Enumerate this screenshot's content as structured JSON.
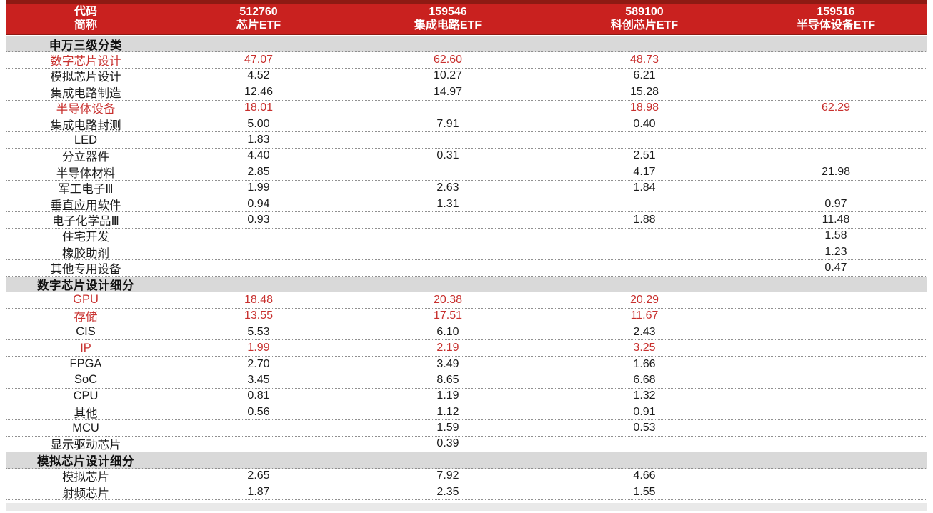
{
  "colors": {
    "header_bg": "#c9211f",
    "header_border": "#8d1a13",
    "section_bg": "#d9d9d9",
    "accent_red": "#c8302e",
    "text": "#1c1c1c"
  },
  "chart_data": {
    "type": "table",
    "header": {
      "columns": [
        {
          "code": "代码",
          "name": "简称"
        },
        {
          "code": "512760",
          "name": "芯片ETF"
        },
        {
          "code": "159546",
          "name": "集成电路ETF"
        },
        {
          "code": "589100",
          "name": "科创芯片ETF"
        },
        {
          "code": "159516",
          "name": "半导体设备ETF"
        }
      ]
    },
    "rows": [
      {
        "type": "section",
        "label": "申万三级分类"
      },
      {
        "type": "data",
        "red": true,
        "label": "数字芯片设计",
        "values": [
          "47.07",
          "62.60",
          "48.73",
          ""
        ]
      },
      {
        "type": "data",
        "red": false,
        "label": "模拟芯片设计",
        "values": [
          "4.52",
          "10.27",
          "6.21",
          ""
        ]
      },
      {
        "type": "data",
        "red": false,
        "label": "集成电路制造",
        "values": [
          "12.46",
          "14.97",
          "15.28",
          ""
        ]
      },
      {
        "type": "data",
        "red": true,
        "label": "半导体设备",
        "values": [
          "18.01",
          "",
          "18.98",
          "62.29"
        ]
      },
      {
        "type": "data",
        "red": false,
        "label": "集成电路封测",
        "values": [
          "5.00",
          "7.91",
          "0.40",
          ""
        ]
      },
      {
        "type": "data",
        "red": false,
        "label": "LED",
        "values": [
          "1.83",
          "",
          "",
          ""
        ]
      },
      {
        "type": "data",
        "red": false,
        "label": "分立器件",
        "values": [
          "4.40",
          "0.31",
          "2.51",
          ""
        ]
      },
      {
        "type": "data",
        "red": false,
        "label": "半导体材料",
        "values": [
          "2.85",
          "",
          "4.17",
          "21.98"
        ]
      },
      {
        "type": "data",
        "red": false,
        "label": "军工电子Ⅲ",
        "values": [
          "1.99",
          "2.63",
          "1.84",
          ""
        ]
      },
      {
        "type": "data",
        "red": false,
        "label": "垂直应用软件",
        "values": [
          "0.94",
          "1.31",
          "",
          "0.97"
        ]
      },
      {
        "type": "data",
        "red": false,
        "label": "电子化学品Ⅲ",
        "values": [
          "0.93",
          "",
          "1.88",
          "11.48"
        ]
      },
      {
        "type": "data",
        "red": false,
        "label": "住宅开发",
        "values": [
          "",
          "",
          "",
          "1.58"
        ]
      },
      {
        "type": "data",
        "red": false,
        "label": "橡胶助剂",
        "values": [
          "",
          "",
          "",
          "1.23"
        ]
      },
      {
        "type": "data",
        "red": false,
        "label": "其他专用设备",
        "values": [
          "",
          "",
          "",
          "0.47"
        ]
      },
      {
        "type": "section",
        "label": "数字芯片设计细分"
      },
      {
        "type": "data",
        "red": true,
        "label": "GPU",
        "values": [
          "18.48",
          "20.38",
          "20.29",
          ""
        ]
      },
      {
        "type": "data",
        "red": true,
        "label": "存储",
        "values": [
          "13.55",
          "17.51",
          "11.67",
          ""
        ]
      },
      {
        "type": "data",
        "red": false,
        "label": "CIS",
        "values": [
          "5.53",
          "6.10",
          "2.43",
          ""
        ]
      },
      {
        "type": "data",
        "red": true,
        "label": "IP",
        "values": [
          "1.99",
          "2.19",
          "3.25",
          ""
        ]
      },
      {
        "type": "data",
        "red": false,
        "label": "FPGA",
        "values": [
          "2.70",
          "3.49",
          "1.66",
          ""
        ]
      },
      {
        "type": "data",
        "red": false,
        "label": "SoC",
        "values": [
          "3.45",
          "8.65",
          "6.68",
          ""
        ]
      },
      {
        "type": "data",
        "red": false,
        "label": "CPU",
        "values": [
          "0.81",
          "1.19",
          "1.32",
          ""
        ]
      },
      {
        "type": "data",
        "red": false,
        "label": "其他",
        "values": [
          "0.56",
          "1.12",
          "0.91",
          ""
        ]
      },
      {
        "type": "data",
        "red": false,
        "label": "MCU",
        "values": [
          "",
          "1.59",
          "0.53",
          ""
        ]
      },
      {
        "type": "data",
        "red": false,
        "label": "显示驱动芯片",
        "values": [
          "",
          "0.39",
          "",
          ""
        ]
      },
      {
        "type": "section",
        "label": "模拟芯片设计细分"
      },
      {
        "type": "data",
        "red": false,
        "label": "模拟芯片",
        "values": [
          "2.65",
          "7.92",
          "4.66",
          ""
        ]
      },
      {
        "type": "data",
        "red": false,
        "label": "射频芯片",
        "values": [
          "1.87",
          "2.35",
          "1.55",
          ""
        ]
      }
    ]
  }
}
